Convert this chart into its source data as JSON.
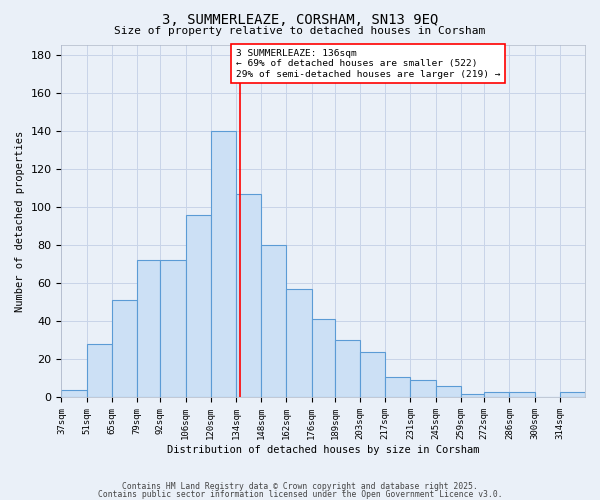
{
  "title": "3, SUMMERLEAZE, CORSHAM, SN13 9EQ",
  "subtitle": "Size of property relative to detached houses in Corsham",
  "xlabel": "Distribution of detached houses by size in Corsham",
  "ylabel": "Number of detached properties",
  "bins": [
    37,
    51,
    65,
    79,
    92,
    106,
    120,
    134,
    148,
    162,
    176,
    189,
    203,
    217,
    231,
    245,
    259,
    272,
    286,
    300,
    314
  ],
  "counts": [
    4,
    28,
    51,
    72,
    72,
    96,
    140,
    107,
    80,
    57,
    41,
    30,
    24,
    11,
    9,
    6,
    2,
    3,
    3,
    0,
    3
  ],
  "bar_facecolor": "#cce0f5",
  "bar_edgecolor": "#5b9bd5",
  "bar_linewidth": 0.8,
  "grid_color": "#c8d4e8",
  "background_color": "#eaf0f8",
  "vline_x": 136,
  "vline_color": "red",
  "vline_linewidth": 1.2,
  "annotation_text": "3 SUMMERLEAZE: 136sqm\n← 69% of detached houses are smaller (522)\n29% of semi-detached houses are larger (219) →",
  "annotation_box_facecolor": "white",
  "annotation_box_edgecolor": "red",
  "ylim": [
    0,
    185
  ],
  "yticks": [
    0,
    20,
    40,
    60,
    80,
    100,
    120,
    140,
    160,
    180
  ],
  "tick_labels": [
    "37sqm",
    "51sqm",
    "65sqm",
    "79sqm",
    "92sqm",
    "106sqm",
    "120sqm",
    "134sqm",
    "148sqm",
    "162sqm",
    "176sqm",
    "189sqm",
    "203sqm",
    "217sqm",
    "231sqm",
    "245sqm",
    "259sqm",
    "272sqm",
    "286sqm",
    "300sqm",
    "314sqm"
  ],
  "footer_line1": "Contains HM Land Registry data © Crown copyright and database right 2025.",
  "footer_line2": "Contains public sector information licensed under the Open Government Licence v3.0."
}
